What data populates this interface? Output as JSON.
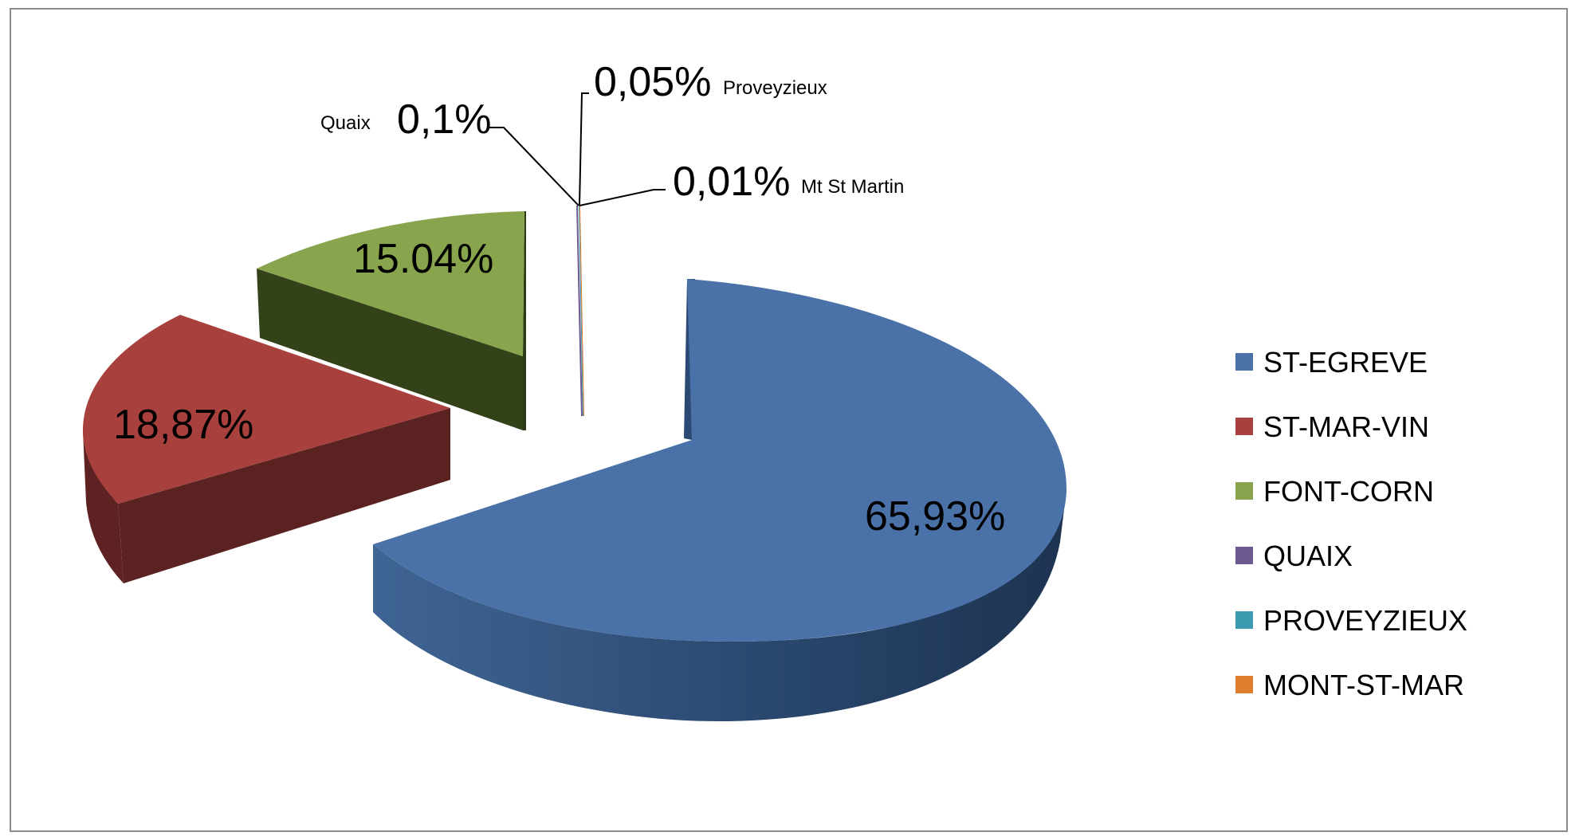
{
  "chart_data": {
    "type": "pie",
    "three_d": true,
    "exploded": true,
    "legend_position": "right",
    "categories": [
      "ST-EGREVE",
      "ST-MAR-VIN",
      "FONT-CORN",
      "QUAIX",
      "PROVEYZIEUX",
      "MONT-ST-MAR"
    ],
    "values": [
      65.93,
      18.87,
      15.04,
      0.1,
      0.05,
      0.01
    ],
    "colors": [
      "#4a72a8",
      "#a8413e",
      "#88a54e",
      "#6d5a91",
      "#3c9bb0",
      "#e07e2f"
    ],
    "side_colors": [
      "#243f64",
      "#5a2221",
      "#334219",
      "#3d3255",
      "#21586a",
      "#8a4a1a"
    ],
    "data_labels": [
      {
        "value_text": "65,93%",
        "name_text": ""
      },
      {
        "value_text": "18,87%",
        "name_text": ""
      },
      {
        "value_text": "15.04%",
        "name_text": ""
      },
      {
        "value_text": "0,1%",
        "name_text": "Quaix"
      },
      {
        "value_text": "0,05%",
        "name_text": "Proveyzieux"
      },
      {
        "value_text": "0,01%",
        "name_text": "Mt St Martin"
      }
    ]
  }
}
